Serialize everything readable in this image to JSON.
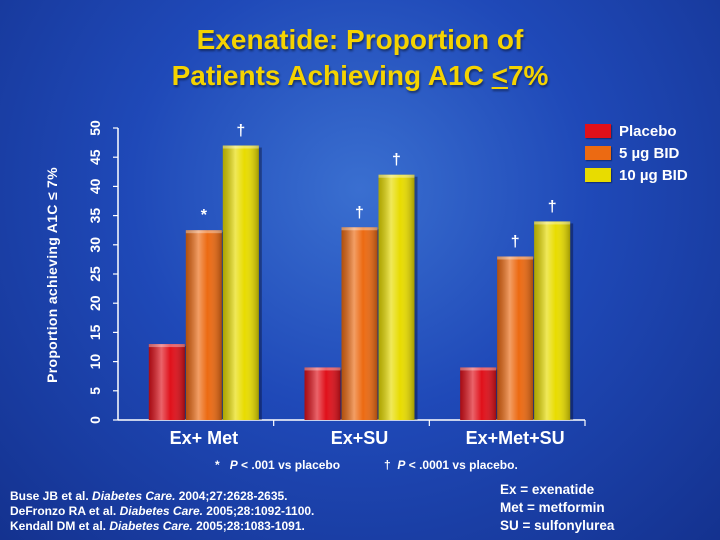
{
  "title": {
    "line1": "Exenatide: Proportion of",
    "line2_prefix": "Patients Achieving A1C ",
    "line2_underlined": "<",
    "line2_suffix": "7%"
  },
  "colors": {
    "placebo": "#e0101a",
    "dose5": "#ec6a12",
    "dose10": "#e8dc00",
    "axis": "#ffffff",
    "title": "#f5d300"
  },
  "chart_data": {
    "type": "bar",
    "title": "Exenatide: Proportion of Patients Achieving A1C <7%",
    "xlabel": "",
    "ylabel": "Proportion achieving A1C ≤ 7%",
    "ylim": [
      0,
      50
    ],
    "yticks": [
      0,
      5,
      10,
      15,
      20,
      25,
      30,
      35,
      40,
      45,
      50
    ],
    "grid": false,
    "legend_position": "top-right",
    "categories": [
      "Ex+ Met",
      "Ex+SU",
      "Ex+Met+SU"
    ],
    "series": [
      {
        "name": "Placebo",
        "color_key": "placebo",
        "values": [
          13,
          9,
          9
        ],
        "markers": [
          "",
          "",
          ""
        ]
      },
      {
        "name": "5 µg BID",
        "color_key": "dose5",
        "values": [
          32.5,
          33,
          28
        ],
        "markers": [
          "*",
          "†",
          "†"
        ]
      },
      {
        "name": "10 µg BID",
        "color_key": "dose10",
        "values": [
          47,
          42,
          34
        ],
        "markers": [
          "†",
          "†",
          "†"
        ]
      }
    ]
  },
  "footnotes": {
    "star_symbol": "*",
    "star_p": "P",
    "star_text": " < .001 vs placebo",
    "dagger_symbol": "†",
    "dagger_p": "P",
    "dagger_text": " < .0001 vs placebo."
  },
  "references": [
    {
      "pre": "Buse JB et al. ",
      "journal": "Diabetes Care.",
      "post": " 2004;27:2628-2635."
    },
    {
      "pre": "DeFronzo RA et al. ",
      "journal": "Diabetes Care.",
      "post": " 2005;28:1092-1100."
    },
    {
      "pre": "Kendall DM et al. ",
      "journal": "Diabetes Care.",
      "post": " 2005;28:1083-1091."
    }
  ],
  "abbreviations": [
    "Ex = exenatide",
    "Met = metformin",
    "SU = sulfonylurea"
  ]
}
